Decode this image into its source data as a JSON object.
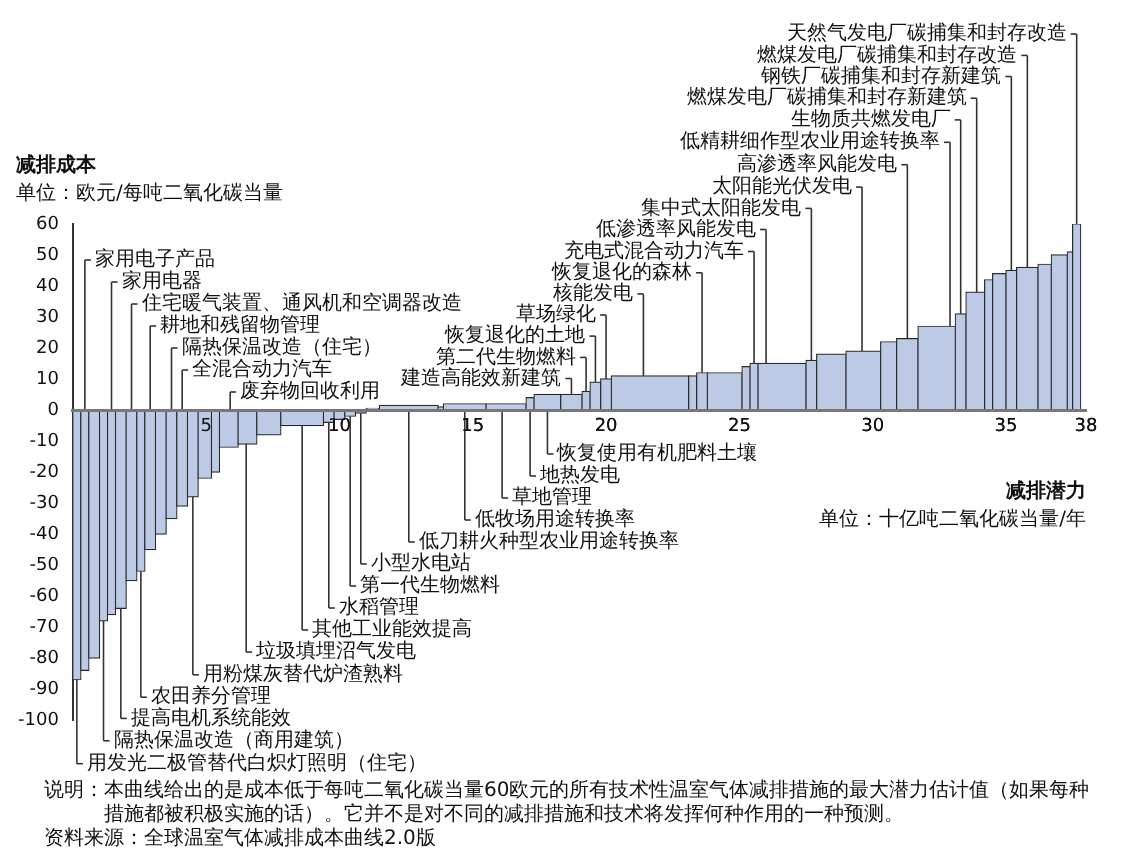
{
  "chart_data": {
    "type": "histogram",
    "ylabel": "减排成本",
    "xlabel": "减排潜力",
    "bins": [
      0,
      0.3,
      0.6,
      1.0,
      1.3,
      1.6,
      2.0,
      2.4,
      2.7,
      3.1,
      3.5,
      3.9,
      4.3,
      4.7,
      5.2,
      5.5,
      6.2,
      6.9,
      7.8,
      9.4,
      9.8,
      10.2,
      10.6,
      11.0,
      11.5,
      13.7,
      13.9,
      15.5,
      17.0,
      17.3,
      18.3,
      19.1,
      19.4,
      19.8,
      20.2,
      23.1,
      23.4,
      23.8,
      25.1,
      25.4,
      25.7,
      27.5,
      27.9,
      29.0,
      30.3,
      30.9,
      31.7,
      33.1,
      33.5,
      34.2,
      34.5,
      35.0,
      35.4,
      36.2,
      36.7,
      37.3,
      37.5,
      37.8
    ],
    "values": [
      -87,
      -84,
      -80,
      -68,
      -66,
      -64,
      -55,
      -52,
      -45,
      -40,
      -35,
      -31,
      -28,
      -22,
      -20,
      -12,
      -11,
      -8,
      -5,
      -4,
      -3,
      -2,
      -1,
      0.5,
      1.5,
      1,
      2,
      2,
      4,
      5,
      5,
      6,
      9,
      10,
      11,
      11,
      12,
      12,
      14,
      15,
      15,
      16,
      18,
      19,
      22,
      23,
      27,
      31,
      38,
      42,
      44,
      45,
      46,
      47,
      50,
      51,
      60
    ],
    "color": "#bccae6",
    "xlim": [
      0,
      38
    ],
    "xticks": [
      5,
      10,
      15,
      20,
      25,
      30,
      35,
      38
    ],
    "ylim": [
      -100,
      60
    ],
    "yticks": [
      -100,
      -90,
      -80,
      -70,
      -60,
      -50,
      -40,
      -30,
      -20,
      -10,
      0,
      10,
      20,
      30,
      40,
      50,
      60
    ],
    "grid": false,
    "legend": false,
    "annotations": [
      "单位：欧元/每吨二氧化碳当量",
      "单位：十亿吨二氧化碳当量/年",
      "说明：本曲线给出的是成本低于每吨二氧化碳当量60欧元的所有技术性温室气体减排措施的最大潜力估计值（如果每种措施都被积极实施的话）。它并不是对不同的减排措施和技术将发挥何种作用的一种预测。",
      "资料来源：全球温室气体减排成本曲线2.0版",
      {
        "text": "家用电子产品",
        "x": 0.45,
        "y": 0
      },
      {
        "text": "家用电器",
        "x": 1.45,
        "y": 0
      },
      {
        "text": "住宅暖气装置、通风机和空调器改造",
        "x": 2.2,
        "y": 0
      },
      {
        "text": "耕地和残留物管理",
        "x": 2.9,
        "y": 0
      },
      {
        "text": "隔热保温改造（住宅）",
        "x": 3.7,
        "y": 0
      },
      {
        "text": "全混合动力汽车",
        "x": 4.1,
        "y": 0
      },
      {
        "text": "废弃物回收利用",
        "x": 5.9,
        "y": 0
      },
      {
        "text": "用发光二极管替代白炽灯照明（住宅）",
        "x": 0.15,
        "y": -87
      },
      {
        "text": "隔热保温改造（商用建筑）",
        "x": 1.15,
        "y": -68
      },
      {
        "text": "提高电机系统能效",
        "x": 1.8,
        "y": -64
      },
      {
        "text": "农田养分管理",
        "x": 2.55,
        "y": -52
      },
      {
        "text": "用粉煤灰替代炉渣熟料",
        "x": 4.5,
        "y": -28
      },
      {
        "text": "垃圾填埋沼气发电",
        "x": 6.5,
        "y": -11
      },
      {
        "text": "其他工业能效提高",
        "x": 8.6,
        "y": -5
      },
      {
        "text": "水稻管理",
        "x": 9.6,
        "y": -4
      },
      {
        "text": "第一代生物燃料",
        "x": 10.4,
        "y": -2
      },
      {
        "text": "小型水电站",
        "x": 10.8,
        "y": -1
      },
      {
        "text": "低刀耕火种型农业用途转换率",
        "x": 12.6,
        "y": 0
      },
      {
        "text": "低牧场用途转换率",
        "x": 14.7,
        "y": 0
      },
      {
        "text": "草地管理",
        "x": 16.1,
        "y": 0
      },
      {
        "text": "地热发电",
        "x": 17.15,
        "y": 0
      },
      {
        "text": "恢复使用有机肥料土壤",
        "x": 17.8,
        "y": 0
      },
      {
        "text": "建造高能效新建筑",
        "x": 18.7,
        "y": 5
      },
      {
        "text": "第二代生物燃料",
        "x": 19.25,
        "y": 6
      },
      {
        "text": "恢复退化的土地",
        "x": 19.6,
        "y": 9
      },
      {
        "text": "草场绿化",
        "x": 20.0,
        "y": 10
      },
      {
        "text": "核能发电",
        "x": 21.4,
        "y": 11
      },
      {
        "text": "恢复退化的森林",
        "x": 23.6,
        "y": 12
      },
      {
        "text": "充电式混合动力汽车",
        "x": 25.55,
        "y": 15
      },
      {
        "text": "低渗透率风能发电",
        "x": 26.0,
        "y": 15
      },
      {
        "text": "集中式太阳能发电",
        "x": 27.7,
        "y": 16
      },
      {
        "text": "太阳能光伏发电",
        "x": 29.6,
        "y": 19
      },
      {
        "text": "高渗透率风能发电",
        "x": 31.3,
        "y": 23
      },
      {
        "text": "低精耕细作型农业用途转换率",
        "x": 32.9,
        "y": 27
      },
      {
        "text": "生物质共燃发电厂",
        "x": 33.3,
        "y": 31
      },
      {
        "text": "燃煤发电厂碳捕集和封存新建筑",
        "x": 33.9,
        "y": 38
      },
      {
        "text": "钢铁厂碳捕集和封存新建筑",
        "x": 35.2,
        "y": 45
      },
      {
        "text": "燃煤发电厂碳捕集和封存改造",
        "x": 35.8,
        "y": 46
      },
      {
        "text": "天然气发电厂碳捕集和封存改造",
        "x": 37.65,
        "y": 60
      }
    ]
  }
}
